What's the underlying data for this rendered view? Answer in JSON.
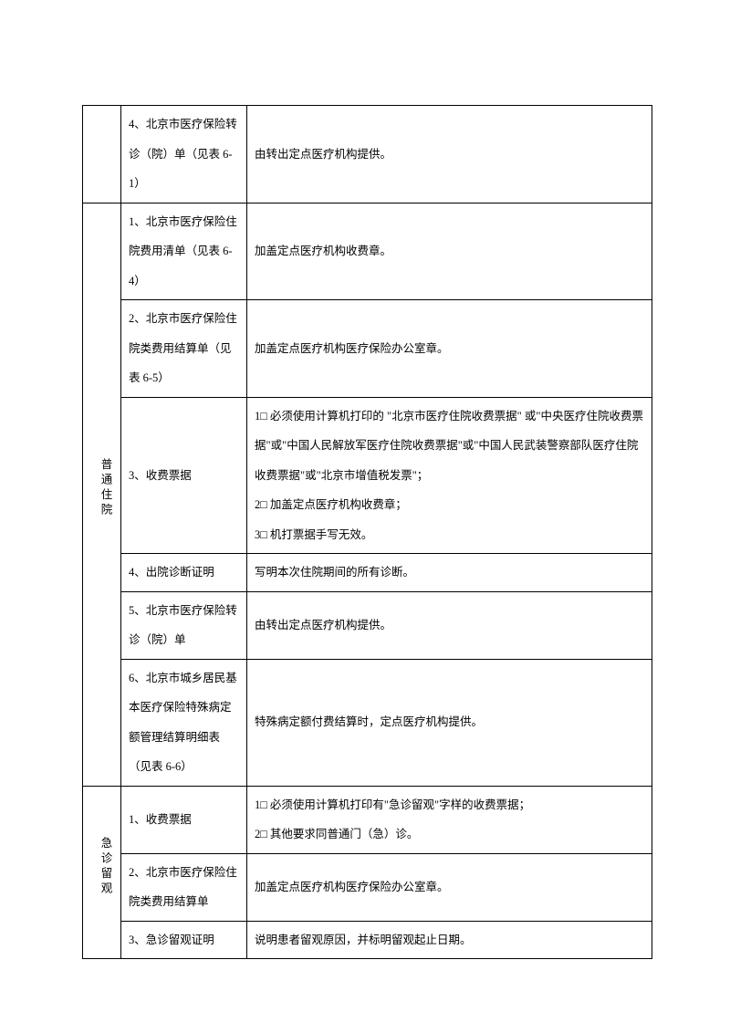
{
  "sections": {
    "top": {
      "row4": {
        "item": "4、北京市医疗保险转诊（院）单（见表 6-1）",
        "desc": "由转出定点医疗机构提供。"
      }
    },
    "putong": {
      "label": "普通住院",
      "row1": {
        "item": "1、北京市医疗保险住院费用清单（见表 6-4）",
        "desc": "加盖定点医疗机构收费章。"
      },
      "row2": {
        "item": "2、北京市医疗保险住院类费用结算单（见表 6-5）",
        "desc": "加盖定点医疗机构医疗保险办公室章。"
      },
      "row3": {
        "item": "3、收费票据",
        "desc": "1□ 必须使用计算机打印的 \"北京市医疗住院收费票据\" 或\"中央医疗住院收费票据\"或\"中国人民解放军医疗住院收费票据\"或\"中国人民武装警察部队医疗住院收费票据\"或\"北京市增值税发票\"；\n2□ 加盖定点医疗机构收费章；\n3□ 机打票据手写无效。"
      },
      "row4": {
        "item": "4、出院诊断证明",
        "desc": "写明本次住院期间的所有诊断。"
      },
      "row5": {
        "item": "5、北京市医疗保险转诊（院）单",
        "desc": "由转出定点医疗机构提供。"
      },
      "row6": {
        "item": "6、北京市城乡居民基本医疗保险特殊病定额管理结算明细表（见表 6-6）",
        "desc": "特殊病定额付费结算时，定点医疗机构提供。"
      }
    },
    "jizhen": {
      "label": "急诊留观",
      "row1": {
        "item": "1、收费票据",
        "desc": "1□ 必须使用计算机打印有\"急诊留观\"字样的收费票据；\n2□ 其他要求同普通门（急）诊。"
      },
      "row2": {
        "item": "2、北京市医疗保险住院类费用结算单",
        "desc": "加盖定点医疗机构医疗保险办公室章。"
      },
      "row3": {
        "item": "3、急诊留观证明",
        "desc": "说明患者留观原因，并标明留观起止日期。"
      }
    }
  }
}
